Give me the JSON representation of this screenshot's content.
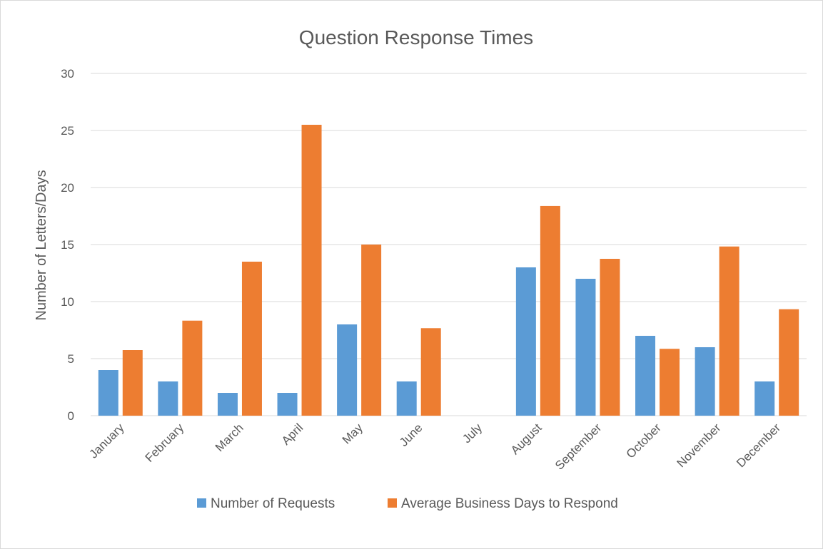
{
  "chart_data": {
    "type": "bar",
    "title": "Question Response Times",
    "xlabel": "",
    "ylabel": "Number of Letters/Days",
    "ylim": [
      0,
      30
    ],
    "yticks": [
      0,
      5,
      10,
      15,
      20,
      25,
      30
    ],
    "grid": true,
    "legend_position": "bottom",
    "categories": [
      "January",
      "February",
      "March",
      "April",
      "May",
      "June",
      "July",
      "August",
      "September",
      "October",
      "November",
      "December"
    ],
    "series": [
      {
        "name": "Number of Requests",
        "color": "#5b9bd5",
        "values": [
          4,
          3,
          2,
          2,
          8,
          3,
          0,
          13,
          12,
          7,
          6,
          3
        ]
      },
      {
        "name": "Average Business Days to Respond",
        "color": "#ed7d31",
        "values": [
          5.75,
          8.33,
          13.5,
          25.5,
          15,
          7.67,
          0,
          18.38,
          13.75,
          5.86,
          14.83,
          9.33
        ]
      }
    ]
  }
}
